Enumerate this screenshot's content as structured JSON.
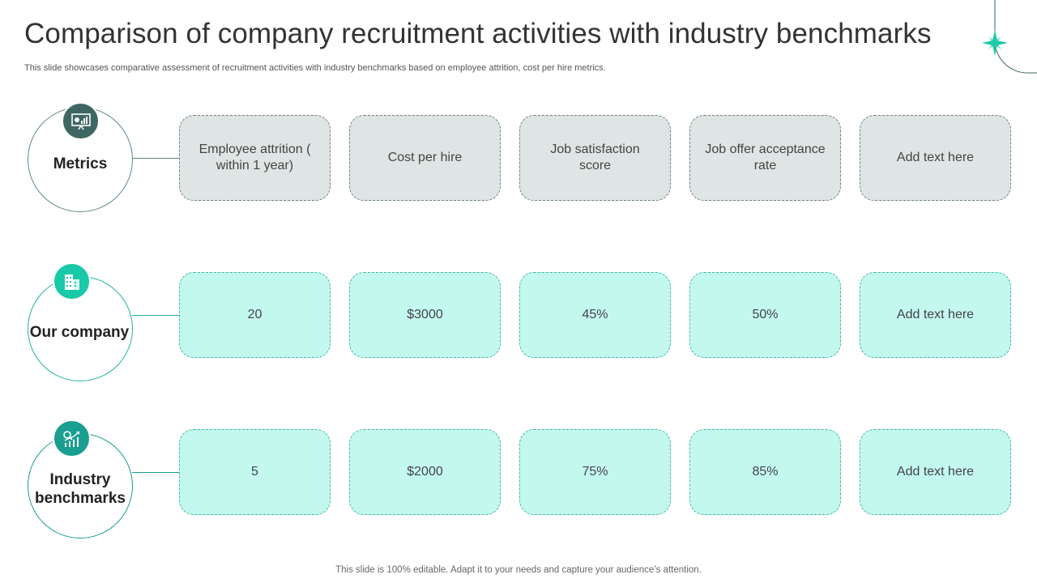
{
  "title": "Comparison of company recruitment activities with industry benchmarks",
  "subtitle": "This slide showcases comparative assessment of recruitment activities with industry benchmarks based on employee attrition, cost per hire metrics.",
  "footer": "This slide is 100% editable. Adapt it to your needs and capture your audience’s attention.",
  "colors": {
    "dark_teal": "#3e6764",
    "teal": "#19c9a9",
    "aqua_fill": "#c3f8ef",
    "grey_fill": "#dfe5e4"
  },
  "rows": [
    {
      "label": "Metrics",
      "icon": "presentation-chart-icon",
      "cells": [
        "Employee attrition ( within 1 year)",
        "Cost per hire",
        "Job satisfaction score",
        "Job offer acceptance rate",
        "Add text here"
      ]
    },
    {
      "label": "Our company",
      "icon": "office-building-icon",
      "cells": [
        "20",
        "$3000",
        "45%",
        "50%",
        "Add text here"
      ]
    },
    {
      "label": "Industry benchmarks",
      "icon": "growth-chart-icon",
      "cells": [
        "5",
        "$2000",
        "75%",
        "85%",
        "Add text here"
      ]
    }
  ]
}
